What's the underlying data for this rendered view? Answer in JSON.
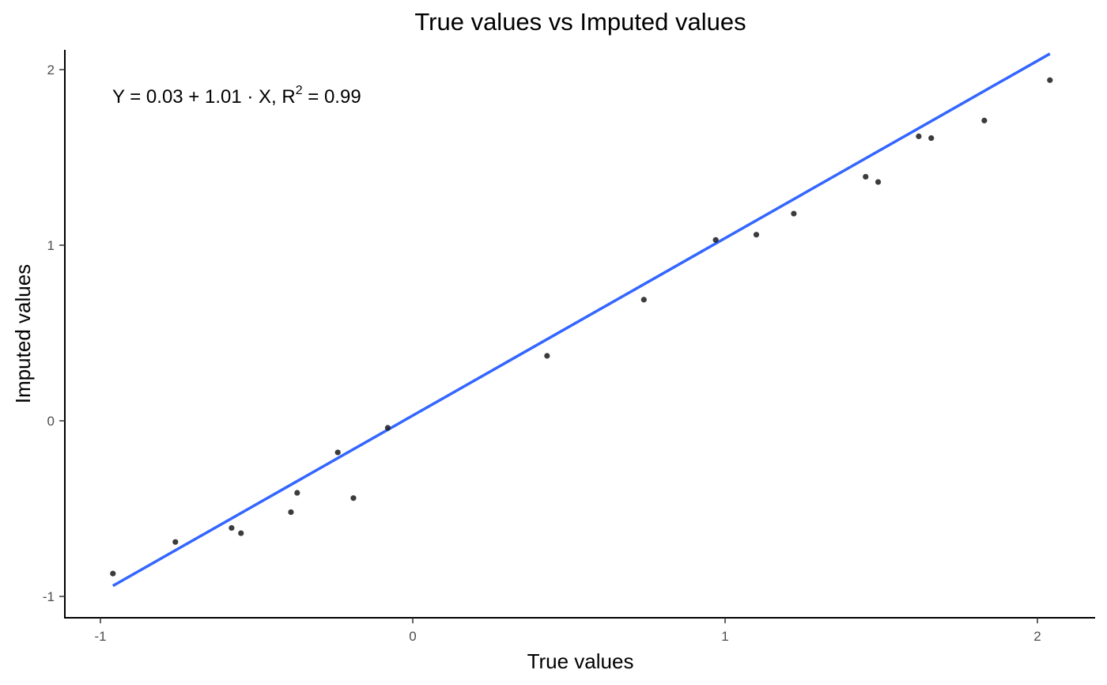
{
  "chart_data": {
    "type": "scatter",
    "title": "True values vs Imputed values",
    "xlabel": "True values",
    "ylabel": "Imputed values",
    "xlim": [
      -1.0,
      2.0
    ],
    "ylim": [
      -1.0,
      2.0
    ],
    "x_ticks": [
      -1,
      0,
      1,
      2
    ],
    "y_ticks": [
      -1,
      0,
      1,
      2
    ],
    "x_tick_labels": [
      "-1",
      "0",
      "1",
      "2"
    ],
    "y_tick_labels": [
      "-1",
      "0",
      "1",
      "2"
    ],
    "grid": false,
    "point_color": "#1a1a1a",
    "line_color": "#3366ff",
    "points": [
      {
        "x": -0.96,
        "y": -0.87
      },
      {
        "x": -0.76,
        "y": -0.69
      },
      {
        "x": -0.58,
        "y": -0.61
      },
      {
        "x": -0.55,
        "y": -0.64
      },
      {
        "x": -0.39,
        "y": -0.52
      },
      {
        "x": -0.37,
        "y": -0.41
      },
      {
        "x": -0.24,
        "y": -0.18
      },
      {
        "x": -0.19,
        "y": -0.44
      },
      {
        "x": -0.08,
        "y": -0.04
      },
      {
        "x": 0.43,
        "y": 0.37
      },
      {
        "x": 0.74,
        "y": 0.69
      },
      {
        "x": 0.97,
        "y": 1.03
      },
      {
        "x": 1.1,
        "y": 1.06
      },
      {
        "x": 1.22,
        "y": 1.18
      },
      {
        "x": 1.45,
        "y": 1.39
      },
      {
        "x": 1.49,
        "y": 1.36
      },
      {
        "x": 1.62,
        "y": 1.62
      },
      {
        "x": 1.66,
        "y": 1.61
      },
      {
        "x": 1.83,
        "y": 1.71
      },
      {
        "x": 2.04,
        "y": 1.94
      }
    ],
    "fit_line": {
      "intercept": 0.03,
      "slope": 1.01,
      "x_range": [
        -0.96,
        2.04
      ]
    },
    "annotation": {
      "equation": "Y = 0.03 + 1.01 · X,  R",
      "sup": "2",
      "rest": " = 0.99"
    }
  }
}
